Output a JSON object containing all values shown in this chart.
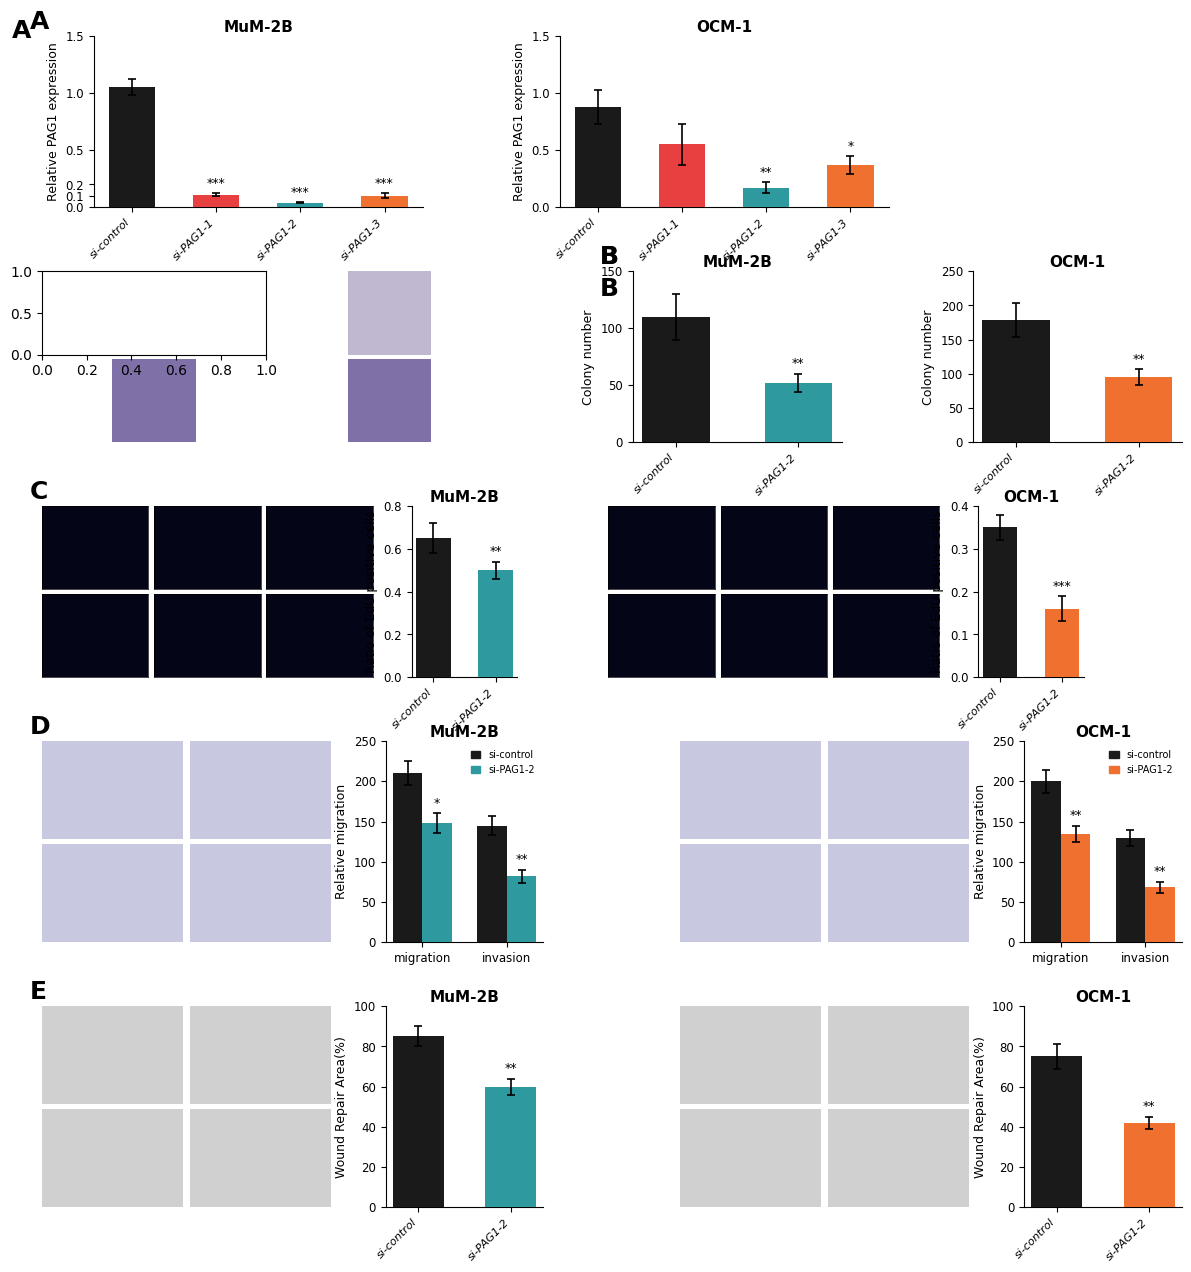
{
  "panel_A": {
    "mum2b": {
      "title": "MuM-2B",
      "ylabel": "Relative PAG1 expression",
      "categories": [
        "si-control",
        "si-PAG1-1",
        "si-PAG1-2",
        "si-PAG1-3"
      ],
      "values": [
        1.05,
        0.11,
        0.04,
        0.1
      ],
      "errors": [
        0.07,
        0.01,
        0.005,
        0.02
      ],
      "colors": [
        "#1a1a1a",
        "#e84040",
        "#2e9aa0",
        "#f07030"
      ],
      "sig": [
        "",
        "***",
        "***",
        "***"
      ],
      "ylim": [
        0,
        1.5
      ],
      "yticks": [
        0.0,
        0.1,
        0.2,
        0.5,
        1.0,
        1.5
      ]
    },
    "ocm1": {
      "title": "OCM-1",
      "ylabel": "Relative PAG1 expression",
      "categories": [
        "si-control",
        "si-PAG1-1",
        "si-PAG1-2",
        "si-PAG1-3"
      ],
      "values": [
        0.88,
        0.55,
        0.17,
        0.37
      ],
      "errors": [
        0.15,
        0.18,
        0.05,
        0.08
      ],
      "colors": [
        "#1a1a1a",
        "#e84040",
        "#2e9aa0",
        "#f07030"
      ],
      "sig": [
        "",
        "",
        "**",
        "*"
      ],
      "ylim": [
        0,
        1.5
      ],
      "yticks": [
        0.0,
        0.5,
        1.0,
        1.5
      ]
    }
  },
  "panel_B": {
    "mum2b": {
      "title": "MuM-2B",
      "ylabel": "Colony number",
      "categories": [
        "si-control",
        "si-PAG1-2"
      ],
      "values": [
        110,
        52
      ],
      "errors": [
        20,
        8
      ],
      "colors": [
        "#1a1a1a",
        "#2e9aa0"
      ],
      "sig": [
        "",
        "**"
      ],
      "ylim": [
        0,
        150
      ],
      "yticks": [
        0,
        50,
        100,
        150
      ]
    },
    "ocm1": {
      "title": "OCM-1",
      "ylabel": "Colony number",
      "categories": [
        "si-control",
        "si-PAG1-2"
      ],
      "values": [
        178,
        95
      ],
      "errors": [
        25,
        12
      ],
      "colors": [
        "#1a1a1a",
        "#f07030"
      ],
      "sig": [
        "",
        "**"
      ],
      "ylim": [
        0,
        250
      ],
      "yticks": [
        0,
        50,
        100,
        150,
        200,
        250
      ]
    }
  },
  "panel_C": {
    "mum2b": {
      "title": "MuM-2B",
      "ylabel": "Ratio of EdU positive cells",
      "categories": [
        "si-control",
        "si-PAG1-2"
      ],
      "values": [
        0.65,
        0.5
      ],
      "errors": [
        0.07,
        0.04
      ],
      "colors": [
        "#1a1a1a",
        "#2e9aa0"
      ],
      "sig": [
        "",
        "**"
      ],
      "ylim": [
        0,
        0.8
      ],
      "yticks": [
        0.0,
        0.2,
        0.4,
        0.6,
        0.8
      ]
    },
    "ocm1": {
      "title": "OCM-1",
      "ylabel": "Ratio of EdU positive cells",
      "categories": [
        "si-control",
        "si-PAG1-2"
      ],
      "values": [
        0.35,
        0.16
      ],
      "errors": [
        0.03,
        0.03
      ],
      "colors": [
        "#1a1a1a",
        "#f07030"
      ],
      "sig": [
        "",
        "***"
      ],
      "ylim": [
        0,
        0.4
      ],
      "yticks": [
        0.0,
        0.1,
        0.2,
        0.3,
        0.4
      ]
    }
  },
  "panel_D": {
    "mum2b": {
      "title": "MuM-2B",
      "ylabel": "Relative migration",
      "categories": [
        "migration",
        "invasion"
      ],
      "values_ctrl": [
        210,
        145
      ],
      "values_si": [
        148,
        82
      ],
      "errors_ctrl": [
        15,
        12
      ],
      "errors_si": [
        12,
        8
      ],
      "colors_ctrl": "#1a1a1a",
      "colors_si": "#2e9aa0",
      "sig_ctrl": [
        "*",
        "**"
      ],
      "ylim": [
        0,
        250
      ],
      "yticks": [
        0,
        50,
        100,
        150,
        200,
        250
      ],
      "legend": [
        "si-control",
        "si-PAG1-2"
      ]
    },
    "ocm1": {
      "title": "OCM-1",
      "ylabel": "Relative migration",
      "categories": [
        "migration",
        "invasion"
      ],
      "values_ctrl": [
        200,
        130
      ],
      "values_si": [
        135,
        68
      ],
      "errors_ctrl": [
        14,
        10
      ],
      "errors_si": [
        10,
        7
      ],
      "colors_ctrl": "#1a1a1a",
      "colors_si": "#f07030",
      "sig_ctrl": [
        "**",
        "**"
      ],
      "ylim": [
        0,
        250
      ],
      "yticks": [
        0,
        50,
        100,
        150,
        200,
        250
      ],
      "legend": [
        "si-control",
        "si-PAG1-2"
      ]
    }
  },
  "panel_E": {
    "mum2b": {
      "title": "MuM-2B",
      "ylabel": "Wound Repair Area(%)",
      "categories": [
        "si-control",
        "si-PAG1-2"
      ],
      "values": [
        85,
        60
      ],
      "errors": [
        5,
        4
      ],
      "colors": [
        "#1a1a1a",
        "#2e9aa0"
      ],
      "sig": [
        "",
        "**"
      ],
      "ylim": [
        0,
        100
      ],
      "yticks": [
        0,
        20,
        40,
        60,
        80,
        100
      ]
    },
    "ocm1": {
      "title": "OCM-1",
      "ylabel": "Wound Repair Area(%)",
      "categories": [
        "si-control",
        "si-PAG1-2"
      ],
      "values": [
        75,
        42
      ],
      "errors": [
        6,
        3
      ],
      "colors": [
        "#1a1a1a",
        "#f07030"
      ],
      "sig": [
        "",
        "**"
      ],
      "ylim": [
        0,
        100
      ],
      "yticks": [
        0,
        20,
        40,
        60,
        80,
        100
      ]
    }
  },
  "label_fontsize": 18,
  "title_fontsize": 11,
  "tick_fontsize": 9,
  "axis_label_fontsize": 9,
  "sig_fontsize": 9,
  "cat_fontsize": 8
}
